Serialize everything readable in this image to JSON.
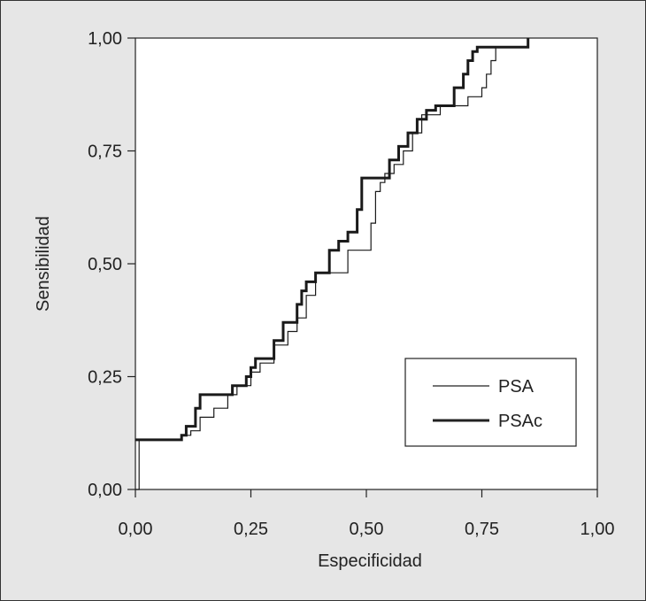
{
  "chart_data": {
    "type": "line",
    "xlabel": "Especificidad",
    "ylabel": "Sensibilidad",
    "xlim": [
      0,
      1
    ],
    "ylim": [
      0,
      1
    ],
    "x_ticks": [
      "0,00",
      "0,25",
      "0,50",
      "0,75",
      "1,00"
    ],
    "y_ticks": [
      "0,00",
      "0,25",
      "0,50",
      "0,75",
      "1,00"
    ],
    "legend_position": "bottom-right",
    "grid": false,
    "series": [
      {
        "name": "PSA",
        "style": "thin",
        "x": [
          0.0,
          0.008,
          0.008,
          0.1,
          0.1,
          0.12,
          0.12,
          0.14,
          0.14,
          0.17,
          0.17,
          0.2,
          0.2,
          0.22,
          0.22,
          0.25,
          0.25,
          0.27,
          0.27,
          0.3,
          0.3,
          0.33,
          0.33,
          0.35,
          0.35,
          0.37,
          0.37,
          0.39,
          0.39,
          0.46,
          0.46,
          0.51,
          0.51,
          0.52,
          0.52,
          0.53,
          0.53,
          0.54,
          0.54,
          0.56,
          0.56,
          0.58,
          0.58,
          0.6,
          0.6,
          0.62,
          0.62,
          0.66,
          0.66,
          0.72,
          0.72,
          0.75,
          0.75,
          0.76,
          0.76,
          0.77,
          0.77,
          0.78,
          0.78,
          0.85
        ],
        "y": [
          0.0,
          0.0,
          0.11,
          0.11,
          0.12,
          0.12,
          0.13,
          0.13,
          0.16,
          0.16,
          0.18,
          0.18,
          0.21,
          0.21,
          0.23,
          0.23,
          0.26,
          0.26,
          0.28,
          0.28,
          0.32,
          0.32,
          0.35,
          0.35,
          0.38,
          0.38,
          0.43,
          0.43,
          0.48,
          0.48,
          0.53,
          0.53,
          0.59,
          0.59,
          0.66,
          0.66,
          0.68,
          0.68,
          0.7,
          0.7,
          0.72,
          0.72,
          0.75,
          0.75,
          0.79,
          0.79,
          0.83,
          0.83,
          0.85,
          0.85,
          0.87,
          0.87,
          0.89,
          0.89,
          0.92,
          0.92,
          0.95,
          0.95,
          0.98,
          0.98
        ]
      },
      {
        "name": "PSAc",
        "style": "thick",
        "x": [
          0.0,
          0.1,
          0.1,
          0.11,
          0.11,
          0.13,
          0.13,
          0.14,
          0.14,
          0.21,
          0.21,
          0.24,
          0.24,
          0.25,
          0.25,
          0.26,
          0.26,
          0.3,
          0.3,
          0.32,
          0.32,
          0.35,
          0.35,
          0.36,
          0.36,
          0.37,
          0.37,
          0.39,
          0.39,
          0.42,
          0.42,
          0.44,
          0.44,
          0.46,
          0.46,
          0.48,
          0.48,
          0.49,
          0.49,
          0.55,
          0.55,
          0.57,
          0.57,
          0.59,
          0.59,
          0.61,
          0.61,
          0.63,
          0.63,
          0.65,
          0.65,
          0.69,
          0.69,
          0.71,
          0.71,
          0.72,
          0.72,
          0.73,
          0.73,
          0.74,
          0.74,
          0.85,
          0.85
        ],
        "y": [
          0.11,
          0.11,
          0.12,
          0.12,
          0.14,
          0.14,
          0.18,
          0.18,
          0.21,
          0.21,
          0.23,
          0.23,
          0.25,
          0.25,
          0.27,
          0.27,
          0.29,
          0.29,
          0.33,
          0.33,
          0.37,
          0.37,
          0.41,
          0.41,
          0.44,
          0.44,
          0.46,
          0.46,
          0.48,
          0.48,
          0.53,
          0.53,
          0.55,
          0.55,
          0.57,
          0.57,
          0.62,
          0.62,
          0.69,
          0.69,
          0.73,
          0.73,
          0.76,
          0.76,
          0.79,
          0.79,
          0.82,
          0.82,
          0.84,
          0.84,
          0.85,
          0.85,
          0.89,
          0.89,
          0.92,
          0.92,
          0.95,
          0.95,
          0.97,
          0.97,
          0.98,
          0.98,
          1.0
        ]
      }
    ]
  }
}
